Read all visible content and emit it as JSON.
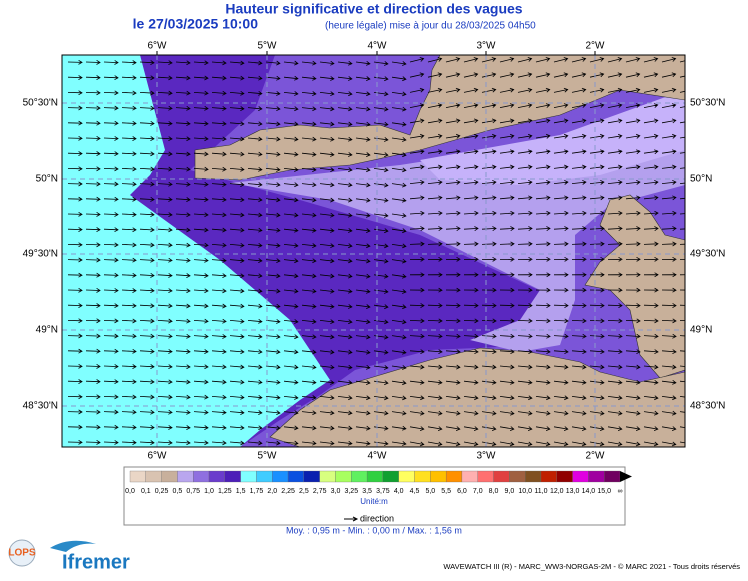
{
  "header": {
    "title": "Hauteur significative et direction des vagues",
    "date": "le 27/03/2025 10:00",
    "update": "(heure légale) mise à jour du 28/03/2025 04h50"
  },
  "map": {
    "longitudes": [
      "6°W",
      "5°W",
      "4°W",
      "3°W",
      "2°W"
    ],
    "latitudes": [
      "50°30'N",
      "50°N",
      "49°30'N",
      "49°N",
      "48°30'N"
    ]
  },
  "colorbar": {
    "labels": [
      "0,0",
      "0,1",
      "0,25",
      "0,5",
      "0,75",
      "1,0",
      "1,25",
      "1,5",
      "1,75",
      "2,0",
      "2,25",
      "2,5",
      "2,75",
      "3,0",
      "3,25",
      "3,5",
      "3,75",
      "4,0",
      "4,5",
      "5,0",
      "5,5",
      "6,0",
      "7,0",
      "8,0",
      "9,0",
      "10,0",
      "11,0",
      "12,0",
      "13,0",
      "14,0",
      "15,0",
      "∞"
    ],
    "colors": [
      "#ead6c6",
      "#d9c3b1",
      "#c8b09c",
      "#b9a6ee",
      "#8f6fe0",
      "#6a3ccc",
      "#4d1fb8",
      "#80ffff",
      "#40ccff",
      "#1a90ff",
      "#0a50e0",
      "#0a20b0",
      "#d8ff80",
      "#a8ff60",
      "#60f060",
      "#30d040",
      "#10a030",
      "#ffff60",
      "#ffe020",
      "#ffc000",
      "#ff9000",
      "#ffb0b0",
      "#ff7070",
      "#e04040",
      "#a06040",
      "#805020",
      "#c02000",
      "#900000",
      "#e000e0",
      "#a000a0",
      "#700060"
    ],
    "unit": "Unité:m",
    "direction": "direction",
    "stats": "Moy. : 0,95 m   -   Min. : 0,00 m / Max. : 1,56 m"
  },
  "footer": {
    "credits": "WAVEWATCH III (R) - MARC_WW3-NORGAS-2M - © MARC 2021 - Tous droits réservés",
    "logo_lops": "LOPS",
    "logo_ifremer": "Ifremer"
  }
}
